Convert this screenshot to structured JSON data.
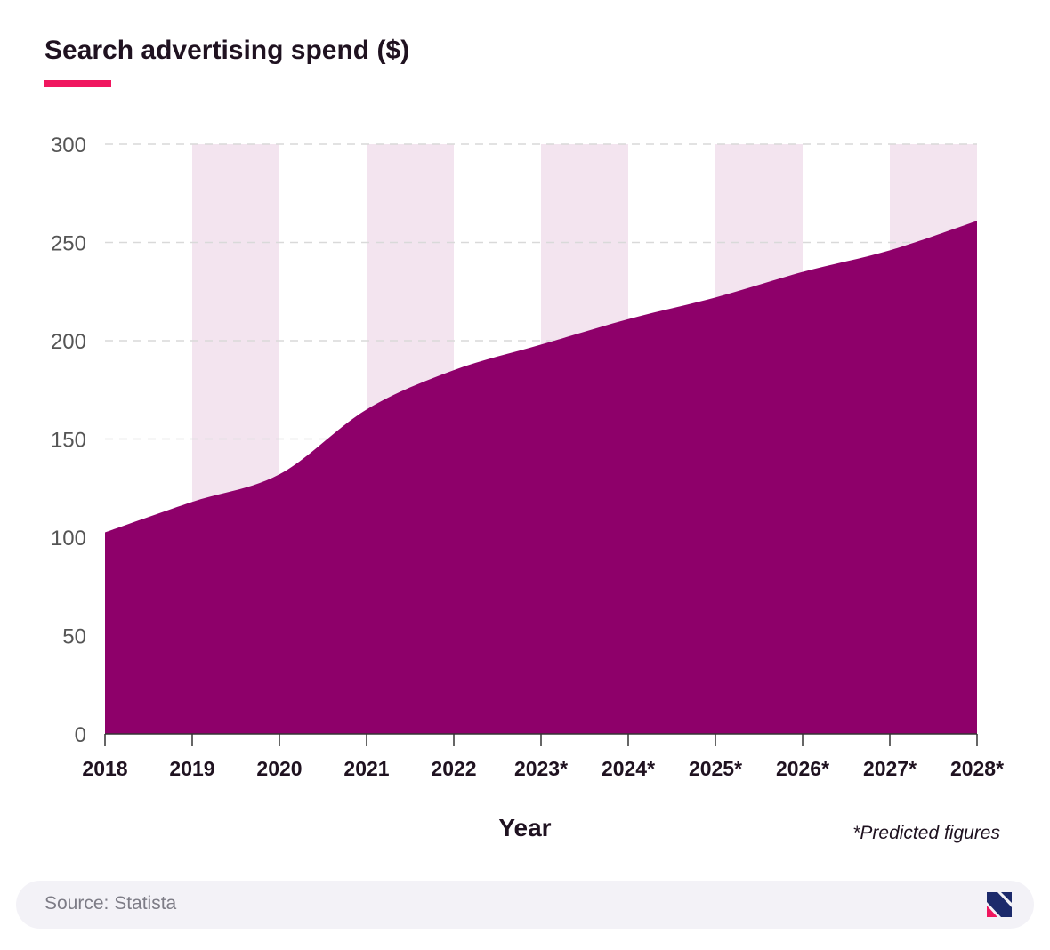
{
  "title": "Search advertising spend ($)",
  "note": "*Predicted figures",
  "source": "Source: Statista",
  "logo_icon": "brand-logo-icon",
  "colors": {
    "accent": "#f0175f",
    "area": "#8e006a",
    "band": "#f3e4ef",
    "grid": "#d9d9d9",
    "text": "#1f1220",
    "footer_bg": "#f3f2f7"
  },
  "chart_data": {
    "type": "area",
    "title": "Search advertising spend ($)",
    "xlabel": "Year",
    "ylabel": "",
    "categories": [
      "2018",
      "2019",
      "2020",
      "2021",
      "2022",
      "2023*",
      "2024*",
      "2025*",
      "2026*",
      "2027*",
      "2028*"
    ],
    "values": [
      102.5,
      118,
      132,
      165,
      185,
      198,
      211,
      222,
      235,
      246,
      261
    ],
    "ylim": [
      0,
      300
    ],
    "yticks": [
      0,
      50,
      100,
      150,
      200,
      250,
      300
    ],
    "grid": true,
    "shaded_bands": [
      [
        "2019",
        "2020"
      ],
      [
        "2021",
        "2022"
      ],
      [
        "2023*",
        "2024*"
      ],
      [
        "2025*",
        "2026*"
      ],
      [
        "2027*",
        "2028*"
      ]
    ]
  }
}
